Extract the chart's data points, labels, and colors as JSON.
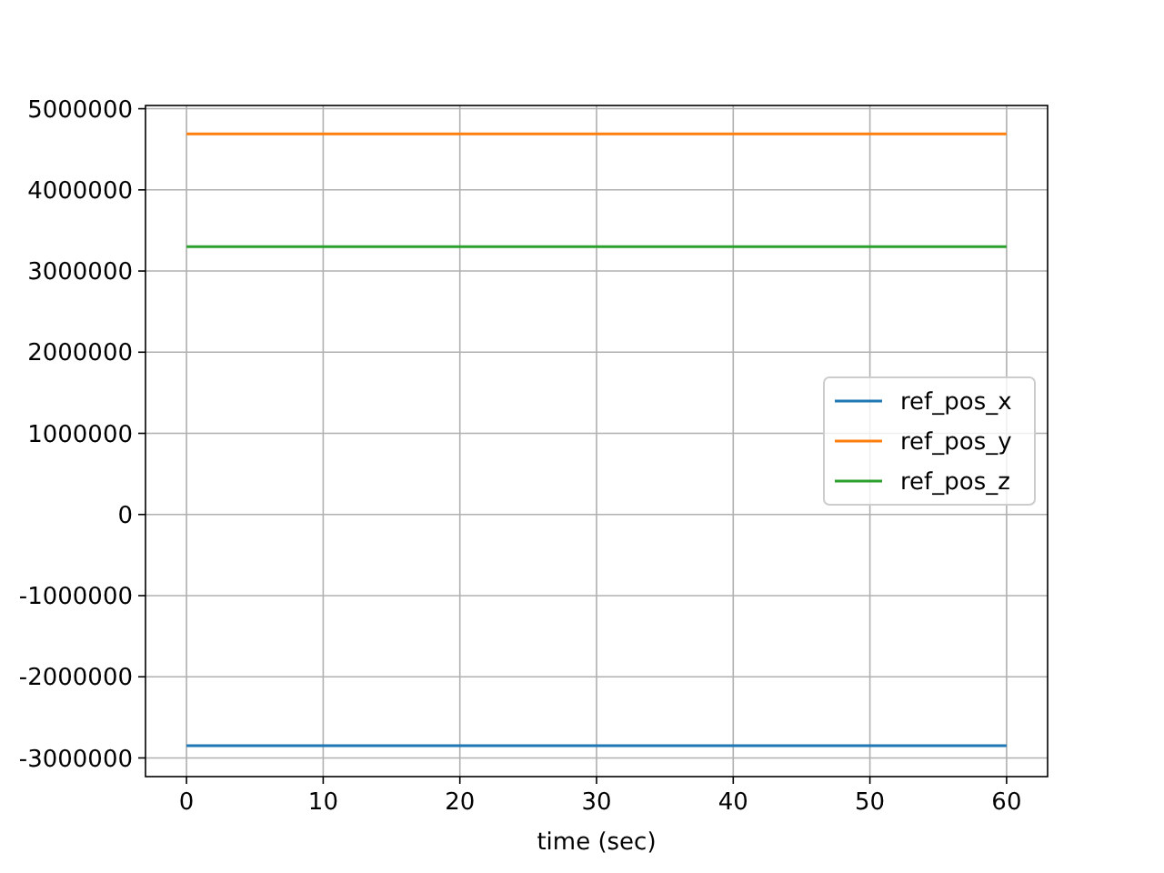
{
  "chart_data": {
    "type": "line",
    "xlabel": "time (sec)",
    "x": [
      0,
      60
    ],
    "series": [
      {
        "name": "ref_pos_x",
        "color": "#1f77b4",
        "values": [
          -2850000,
          -2850000
        ]
      },
      {
        "name": "ref_pos_y",
        "color": "#ff7f0e",
        "values": [
          4690000,
          4690000
        ]
      },
      {
        "name": "ref_pos_z",
        "color": "#2ca02c",
        "values": [
          3300000,
          3300000
        ]
      }
    ],
    "xlim": [
      -3,
      63
    ],
    "xticks": [
      0,
      10,
      20,
      30,
      40,
      50,
      60
    ],
    "ylim": [
      -3230000,
      5040000
    ],
    "yticks": [
      -3000000,
      -2000000,
      -1000000,
      0,
      1000000,
      2000000,
      3000000,
      4000000,
      5000000
    ],
    "grid": true,
    "legend": "right"
  }
}
